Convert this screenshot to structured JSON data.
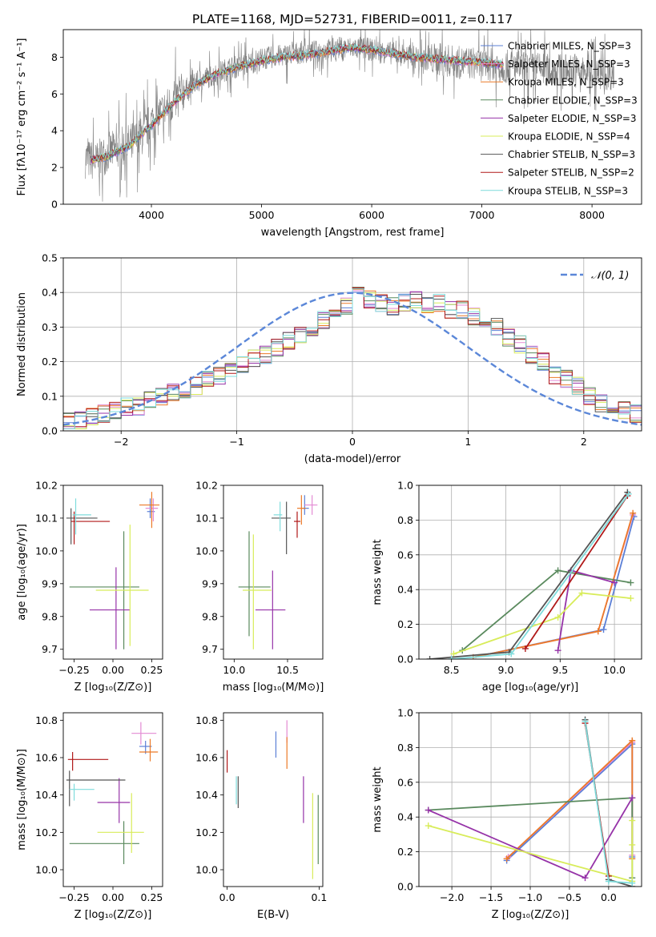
{
  "colors": {
    "chabrier_miles": "#5b7fd6",
    "salpeter_miles": "#e38ad3",
    "kroupa_miles": "#ec7a28",
    "chabrier_elodie": "#5a8a5e",
    "salpeter_elodie": "#9633a8",
    "kroupa_elodie": "#d8ec5a",
    "chabrier_stelib": "#555555",
    "salpeter_stelib": "#b01818",
    "kroupa_stelib": "#7fdcdc",
    "observed": "#808080",
    "normal_curve": "#5b87d8",
    "grid": "#b0b0b0"
  },
  "chart_data": [
    {
      "id": "spectrum",
      "type": "line",
      "title": "PLATE=1168, MJD=52731, FIBERID=0011, z=0.117",
      "xlabel": "wavelength [Angstrom, rest frame]",
      "ylabel": "Flux [fλ10⁻¹⁷ erg cm⁻² s⁻¹ A⁻¹]",
      "xlim": [
        3200,
        8450
      ],
      "ylim": [
        0,
        9.5
      ],
      "xticks": [
        "4000",
        "5000",
        "6000",
        "7000",
        "8000"
      ],
      "yticks": [
        "0",
        "2",
        "4",
        "6",
        "8"
      ],
      "grid": false,
      "legend_position": "top-right",
      "legend": [
        "Chabrier MILES, N_SSP=3",
        "Salpeter MILES, N_SSP=3",
        "Kroupa MILES, N_SSP=3",
        "Chabrier ELODIE, N_SSP=3",
        "Salpeter ELODIE, N_SSP=3",
        "Kroupa ELODIE, N_SSP=4",
        "Chabrier STELIB, N_SSP=3",
        "Salpeter STELIB, N_SSP=2",
        "Kroupa STELIB, N_SSP=3"
      ],
      "model_x": [
        3450,
        3600,
        3800,
        4000,
        4200,
        4400,
        4600,
        4800,
        5000,
        5200,
        5400,
        5600,
        5800,
        6000,
        6200,
        6400,
        6600,
        6800,
        7000,
        7200
      ],
      "model_y": [
        2.4,
        2.6,
        3.2,
        4.3,
        5.5,
        6.5,
        7.1,
        7.5,
        7.8,
        8.0,
        8.1,
        8.3,
        8.5,
        8.4,
        8.2,
        8.0,
        7.9,
        7.8,
        7.7,
        7.6
      ],
      "observed_x": [
        3400,
        3500,
        3600,
        3700,
        3800,
        3900,
        4000,
        4100,
        4200,
        4300,
        4400,
        4500,
        4600,
        4700,
        4800,
        4900,
        5000,
        5100,
        5200,
        5300,
        5400,
        5500,
        5600,
        5700,
        5800,
        5900,
        6000,
        6100,
        6200,
        6300,
        6400,
        6500,
        6600,
        6700,
        6800,
        6900,
        7000,
        7100,
        7200,
        7300,
        7400,
        7500,
        7600,
        7700,
        7800,
        7900,
        8000,
        8100,
        8200
      ],
      "observed_y": [
        2.5,
        2.3,
        2.8,
        3.0,
        3.3,
        3.6,
        4.5,
        5.0,
        5.6,
        6.2,
        6.6,
        6.9,
        7.1,
        7.4,
        7.5,
        7.7,
        7.9,
        8.0,
        8.1,
        8.2,
        8.3,
        8.3,
        8.4,
        8.5,
        8.5,
        8.5,
        8.4,
        8.3,
        8.2,
        8.1,
        8.0,
        7.9,
        7.9,
        7.8,
        7.7,
        7.7,
        7.6,
        7.6,
        7.5,
        7.5,
        7.4,
        7.4,
        7.3,
        7.3,
        7.3,
        7.2,
        7.2,
        7.1,
        7.1
      ]
    },
    {
      "id": "residuals",
      "type": "line",
      "xlabel": "(data-model)/error",
      "ylabel": "Normed distribution",
      "xlim": [
        -2.5,
        2.5
      ],
      "ylim": [
        0,
        0.5
      ],
      "xticks": [
        "−2",
        "−1",
        "0",
        "1",
        "2"
      ],
      "yticks": [
        "0.0",
        "0.1",
        "0.2",
        "0.3",
        "0.4",
        "0.5"
      ],
      "grid": true,
      "legend_position": "top-right",
      "legend": [
        "𝒩(0, 1)"
      ],
      "bin_width": 0.1,
      "bin_start": -2.5,
      "hist": [
        0.03,
        0.03,
        0.04,
        0.05,
        0.06,
        0.07,
        0.07,
        0.09,
        0.1,
        0.11,
        0.12,
        0.13,
        0.15,
        0.16,
        0.17,
        0.19,
        0.21,
        0.22,
        0.24,
        0.26,
        0.28,
        0.3,
        0.32,
        0.34,
        0.36,
        0.39,
        0.38,
        0.37,
        0.36,
        0.37,
        0.38,
        0.36,
        0.37,
        0.35,
        0.35,
        0.33,
        0.3,
        0.3,
        0.27,
        0.25,
        0.22,
        0.2,
        0.16,
        0.15,
        0.13,
        0.1,
        0.08,
        0.07,
        0.06,
        0.05
      ]
    },
    {
      "id": "age_vs_Z",
      "type": "scatter",
      "xlabel": "Z [log₁₀(Z/Z⊙)]",
      "ylabel": "age  [log₁₀(age/yr)]",
      "xlim": [
        -0.32,
        0.32
      ],
      "ylim": [
        9.67,
        10.2
      ],
      "xticks": [
        "−0.25",
        "0.00",
        "0.25"
      ],
      "yticks": [
        "9.7",
        "9.8",
        "9.9",
        "10.0",
        "10.1",
        "10.2"
      ],
      "grid": false,
      "points": [
        {
          "model": "chabrier_miles",
          "x": 0.24,
          "y": 10.12,
          "xerr": [
            0.02,
            0.03
          ],
          "yerr": [
            0.02,
            0.04
          ]
        },
        {
          "model": "salpeter_miles",
          "x": 0.26,
          "y": 10.13,
          "xerr": [
            0.05,
            0.03
          ],
          "yerr": [
            0.04,
            0.03
          ]
        },
        {
          "model": "kroupa_miles",
          "x": 0.25,
          "y": 10.14,
          "xerr": [
            0.08,
            0.05
          ],
          "yerr": [
            0.07,
            0.04
          ]
        },
        {
          "model": "chabrier_elodie",
          "x": 0.07,
          "y": 9.89,
          "xerr": [
            0.35,
            0.1
          ],
          "yerr": [
            0.19,
            0.17
          ]
        },
        {
          "model": "salpeter_elodie",
          "x": 0.02,
          "y": 9.82,
          "xerr": [
            0.17,
            0.09
          ],
          "yerr": [
            0.12,
            0.13
          ]
        },
        {
          "model": "kroupa_elodie",
          "x": 0.11,
          "y": 9.88,
          "xerr": [
            0.22,
            0.12
          ],
          "yerr": [
            0.17,
            0.2
          ]
        },
        {
          "model": "chabrier_stelib",
          "x": -0.27,
          "y": 10.1,
          "xerr": [
            0.03,
            0.17
          ],
          "yerr": [
            0.08,
            0.03
          ]
        },
        {
          "model": "salpeter_stelib",
          "x": -0.25,
          "y": 10.09,
          "xerr": [
            0.02,
            0.23
          ],
          "yerr": [
            0.07,
            0.03
          ]
        },
        {
          "model": "kroupa_stelib",
          "x": -0.24,
          "y": 10.11,
          "xerr": [
            0.02,
            0.1
          ],
          "yerr": [
            0.06,
            0.05
          ]
        }
      ]
    },
    {
      "id": "age_vs_mass",
      "type": "scatter",
      "xlabel": "mass [log₁₀(M/M⊙)]",
      "ylabel": "",
      "xlim": [
        9.9,
        10.83
      ],
      "ylim": [
        9.67,
        10.2
      ],
      "xticks": [
        "10.0",
        "10.5"
      ],
      "yticks": [
        "9.7",
        "9.8",
        "9.9",
        "10.0",
        "10.1",
        "10.2"
      ],
      "grid": false,
      "points": [
        {
          "model": "chabrier_miles",
          "x": 10.66,
          "y": 10.13,
          "xerr": [
            0.02,
            0.04
          ],
          "yerr": [
            0.02,
            0.04
          ]
        },
        {
          "model": "salpeter_miles",
          "x": 10.73,
          "y": 10.14,
          "xerr": [
            0.07,
            0.05
          ],
          "yerr": [
            0.03,
            0.03
          ]
        },
        {
          "model": "kroupa_miles",
          "x": 10.63,
          "y": 10.13,
          "xerr": [
            0.04,
            0.04
          ],
          "yerr": [
            0.05,
            0.04
          ]
        },
        {
          "model": "chabrier_elodie",
          "x": 10.14,
          "y": 9.89,
          "xerr": [
            0.1,
            0.2
          ],
          "yerr": [
            0.15,
            0.17
          ]
        },
        {
          "model": "salpeter_elodie",
          "x": 10.36,
          "y": 9.82,
          "xerr": [
            0.16,
            0.12
          ],
          "yerr": [
            0.12,
            0.12
          ]
        },
        {
          "model": "kroupa_elodie",
          "x": 10.18,
          "y": 9.88,
          "xerr": [
            0.1,
            0.17
          ],
          "yerr": [
            0.18,
            0.17
          ]
        },
        {
          "model": "chabrier_stelib",
          "x": 10.49,
          "y": 10.1,
          "xerr": [
            0.14,
            0.04
          ],
          "yerr": [
            0.11,
            0.05
          ]
        },
        {
          "model": "salpeter_stelib",
          "x": 10.59,
          "y": 10.09,
          "xerr": [
            0.03,
            0.03
          ],
          "yerr": [
            0.05,
            0.03
          ]
        },
        {
          "model": "kroupa_stelib",
          "x": 10.43,
          "y": 10.11,
          "xerr": [
            0.06,
            0.02
          ],
          "yerr": [
            0.05,
            0.04
          ]
        }
      ]
    },
    {
      "id": "weight_vs_age",
      "type": "line",
      "xlabel": "age  [log₁₀(age/yr)]",
      "ylabel": "mass weight",
      "xlim": [
        8.2,
        10.25
      ],
      "ylim": [
        0,
        1.0
      ],
      "xticks": [
        "8.5",
        "9.0",
        "9.5",
        "10.0"
      ],
      "yticks": [
        "0.0",
        "0.2",
        "0.4",
        "0.6",
        "0.8",
        "1.0"
      ],
      "grid": true,
      "series": [
        {
          "model": "chabrier_miles",
          "x": [
            8.7,
            9.9,
            10.18
          ],
          "y": [
            0.01,
            0.17,
            0.82
          ]
        },
        {
          "model": "salpeter_miles",
          "x": [
            8.7,
            9.85,
            10.17
          ],
          "y": [
            0.01,
            0.16,
            0.83
          ]
        },
        {
          "model": "kroupa_miles",
          "x": [
            8.7,
            9.85,
            10.17
          ],
          "y": [
            0.01,
            0.16,
            0.84
          ]
        },
        {
          "model": "chabrier_elodie",
          "x": [
            8.6,
            9.48,
            10.15
          ],
          "y": [
            0.05,
            0.51,
            0.44
          ]
        },
        {
          "model": "salpeter_elodie",
          "x": [
            9.48,
            9.6,
            10.0
          ],
          "y": [
            0.05,
            0.51,
            0.44
          ]
        },
        {
          "model": "kroupa_elodie",
          "x": [
            8.52,
            9.48,
            9.7,
            10.15
          ],
          "y": [
            0.03,
            0.24,
            0.38,
            0.35
          ]
        },
        {
          "model": "chabrier_stelib",
          "x": [
            8.3,
            9.03,
            10.12
          ],
          "y": [
            0.0,
            0.04,
            0.96
          ]
        },
        {
          "model": "salpeter_stelib",
          "x": [
            9.18,
            10.12
          ],
          "y": [
            0.06,
            0.94
          ]
        },
        {
          "model": "kroupa_stelib",
          "x": [
            8.5,
            9.05,
            10.13
          ],
          "y": [
            0.0,
            0.03,
            0.95
          ]
        }
      ]
    },
    {
      "id": "mass_vs_Z",
      "type": "scatter",
      "xlabel": "Z [log₁₀(Z/Z⊙)]",
      "ylabel": "mass [log₁₀(M/M⊙)]",
      "xlim": [
        -0.32,
        0.32
      ],
      "ylim": [
        9.91,
        10.84
      ],
      "xticks": [
        "−0.25",
        "0.00",
        "0.25"
      ],
      "yticks": [
        "10.0",
        "10.2",
        "10.4",
        "10.6",
        "10.8"
      ],
      "grid": false,
      "points": [
        {
          "model": "chabrier_miles",
          "x": 0.21,
          "y": 10.66,
          "xerr": [
            0.04,
            0.04
          ],
          "yerr": [
            0.04,
            0.03
          ]
        },
        {
          "model": "salpeter_miles",
          "x": 0.18,
          "y": 10.73,
          "xerr": [
            0.06,
            0.1
          ],
          "yerr": [
            0.06,
            0.06
          ]
        },
        {
          "model": "kroupa_miles",
          "x": 0.24,
          "y": 10.63,
          "xerr": [
            0.07,
            0.05
          ],
          "yerr": [
            0.05,
            0.07
          ]
        },
        {
          "model": "chabrier_elodie",
          "x": 0.07,
          "y": 10.14,
          "xerr": [
            0.35,
            0.1
          ],
          "yerr": [
            0.11,
            0.12
          ]
        },
        {
          "model": "salpeter_elodie",
          "x": 0.04,
          "y": 10.36,
          "xerr": [
            0.14,
            0.07
          ],
          "yerr": [
            0.11,
            0.13
          ]
        },
        {
          "model": "kroupa_elodie",
          "x": 0.12,
          "y": 10.2,
          "xerr": [
            0.22,
            0.08
          ],
          "yerr": [
            0.11,
            0.21
          ]
        },
        {
          "model": "chabrier_stelib",
          "x": -0.28,
          "y": 10.48,
          "xerr": [
            0.02,
            0.36
          ],
          "yerr": [
            0.14,
            0.05
          ]
        },
        {
          "model": "salpeter_stelib",
          "x": -0.26,
          "y": 10.59,
          "xerr": [
            0.03,
            0.23
          ],
          "yerr": [
            0.06,
            0.04
          ]
        },
        {
          "model": "kroupa_stelib",
          "x": -0.25,
          "y": 10.43,
          "xerr": [
            0.03,
            0.13
          ],
          "yerr": [
            0.06,
            0.03
          ]
        }
      ]
    },
    {
      "id": "mass_vs_ebv",
      "type": "scatter",
      "xlabel": "E(B-V)",
      "ylabel": "",
      "xlim": [
        -0.004,
        0.104
      ],
      "ylim": [
        9.91,
        10.84
      ],
      "xticks": [
        "0.0",
        "0.1"
      ],
      "yticks": [
        "10.0",
        "10.2",
        "10.4",
        "10.6",
        "10.8"
      ],
      "grid": false,
      "points": [
        {
          "model": "chabrier_miles",
          "x": 0.053,
          "y": 10.66,
          "xerr": [
            0,
            0
          ],
          "yerr": [
            0.06,
            0.08
          ]
        },
        {
          "model": "salpeter_miles",
          "x": 0.065,
          "y": 10.73,
          "xerr": [
            0,
            0
          ],
          "yerr": [
            0.05,
            0.07
          ]
        },
        {
          "model": "kroupa_miles",
          "x": 0.065,
          "y": 10.62,
          "xerr": [
            0,
            0
          ],
          "yerr": [
            0.08,
            0.09
          ]
        },
        {
          "model": "chabrier_elodie",
          "x": 0.099,
          "y": 10.21,
          "xerr": [
            0,
            0
          ],
          "yerr": [
            0.18,
            0.19
          ]
        },
        {
          "model": "salpeter_elodie",
          "x": 0.083,
          "y": 10.37,
          "xerr": [
            0,
            0
          ],
          "yerr": [
            0.12,
            0.13
          ]
        },
        {
          "model": "kroupa_elodie",
          "x": 0.093,
          "y": 10.17,
          "xerr": [
            0,
            0
          ],
          "yerr": [
            0.22,
            0.24
          ]
        },
        {
          "model": "chabrier_stelib",
          "x": 0.012,
          "y": 10.43,
          "xerr": [
            0,
            0
          ],
          "yerr": [
            0.1,
            0.07
          ]
        },
        {
          "model": "salpeter_stelib",
          "x": 0.0,
          "y": 10.58,
          "xerr": [
            0,
            0
          ],
          "yerr": [
            0.06,
            0.06
          ]
        },
        {
          "model": "kroupa_stelib",
          "x": 0.01,
          "y": 10.43,
          "xerr": [
            0,
            0
          ],
          "yerr": [
            0.08,
            0.07
          ]
        }
      ]
    },
    {
      "id": "weight_vs_Z",
      "type": "line",
      "xlabel": "Z [log₁₀(Z/Z⊙)]",
      "ylabel": "mass weight",
      "xlim": [
        -2.42,
        0.42
      ],
      "ylim": [
        0,
        1.0
      ],
      "xticks": [
        "−2.0",
        "−1.5",
        "−1.0",
        "−0.5",
        "0.0"
      ],
      "yticks": [
        "0.0",
        "0.2",
        "0.4",
        "0.6",
        "0.8",
        "1.0"
      ],
      "grid": true,
      "series": [
        {
          "model": "chabrier_miles",
          "x": [
            -1.3,
            0.3,
            0.3
          ],
          "y": [
            0.15,
            0.82,
            0.17
          ]
        },
        {
          "model": "salpeter_miles",
          "x": [
            -1.28,
            0.3,
            0.3
          ],
          "y": [
            0.17,
            0.83,
            0.18
          ]
        },
        {
          "model": "kroupa_miles",
          "x": [
            -1.3,
            0.3,
            0.3
          ],
          "y": [
            0.16,
            0.84,
            0.16
          ]
        },
        {
          "model": "chabrier_elodie",
          "x": [
            -2.3,
            0.3,
            0.3
          ],
          "y": [
            0.44,
            0.51,
            0.05
          ]
        },
        {
          "model": "salpeter_elodie",
          "x": [
            -2.3,
            -0.3,
            0.3
          ],
          "y": [
            0.44,
            0.05,
            0.51
          ]
        },
        {
          "model": "kroupa_elodie",
          "x": [
            -2.3,
            0.3,
            0.3,
            0.3
          ],
          "y": [
            0.35,
            0.03,
            0.24,
            0.38
          ]
        },
        {
          "model": "chabrier_stelib",
          "x": [
            -0.3,
            0.0,
            0.3
          ],
          "y": [
            0.96,
            0.04,
            0.0
          ]
        },
        {
          "model": "salpeter_stelib",
          "x": [
            -0.3,
            0.0
          ],
          "y": [
            0.94,
            0.06
          ]
        },
        {
          "model": "kroupa_stelib",
          "x": [
            -0.3,
            0.0,
            0.3
          ],
          "y": [
            0.95,
            0.03,
            0.02
          ]
        }
      ]
    }
  ]
}
